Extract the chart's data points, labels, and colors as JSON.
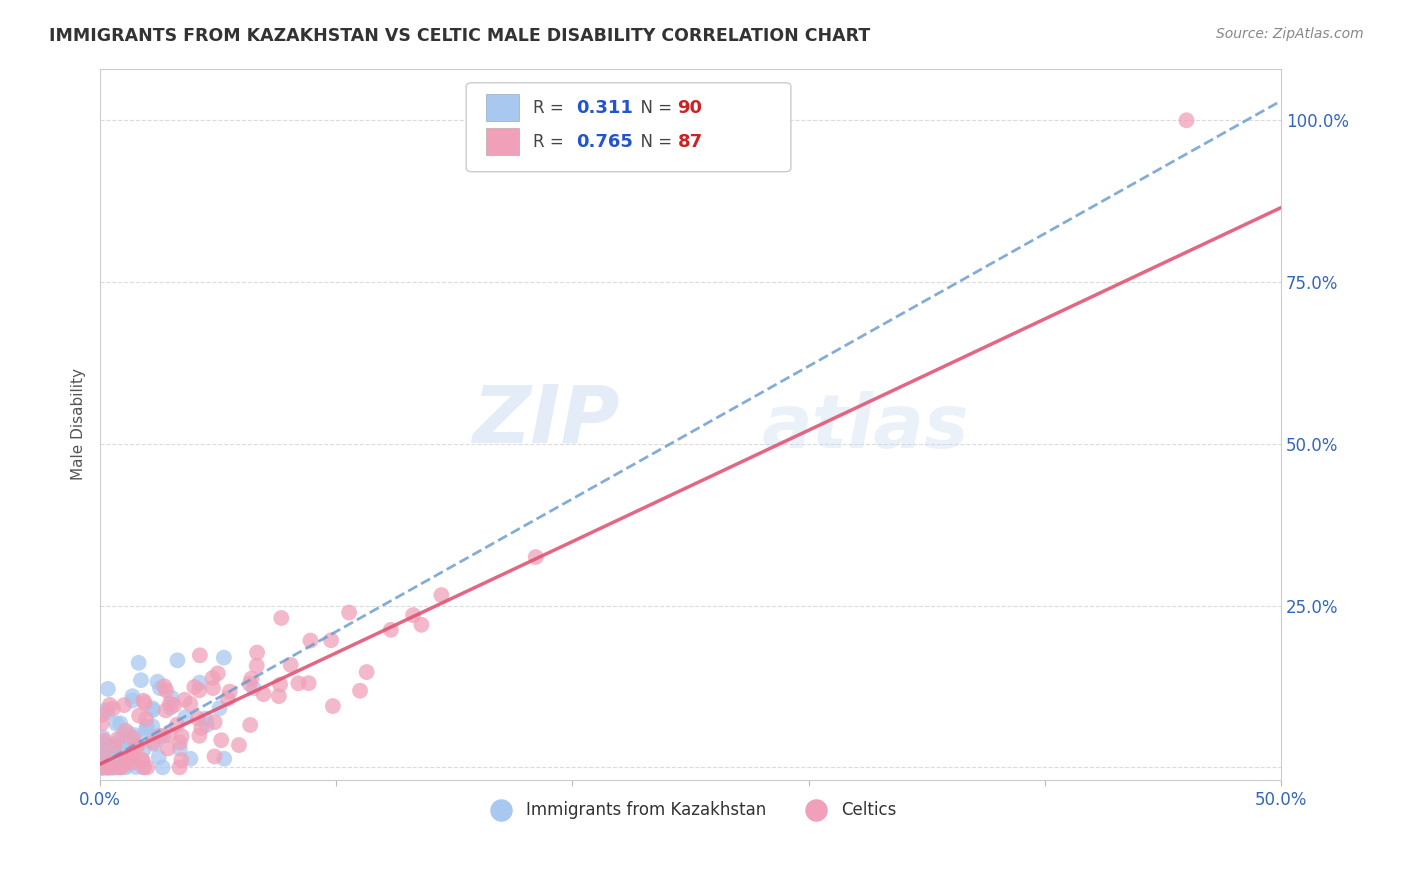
{
  "title": "IMMIGRANTS FROM KAZAKHSTAN VS CELTIC MALE DISABILITY CORRELATION CHART",
  "source": "Source: ZipAtlas.com",
  "ylabel_label": "Male Disability",
  "xlim": [
    0.0,
    0.5
  ],
  "ylim": [
    -0.02,
    1.08
  ],
  "x_ticks": [
    0.0,
    0.1,
    0.2,
    0.3,
    0.4,
    0.5
  ],
  "x_tick_labels": [
    "0.0%",
    "",
    "",
    "",
    "",
    "50.0%"
  ],
  "y_ticks": [
    0.0,
    0.25,
    0.5,
    0.75,
    1.0
  ],
  "y_tick_labels": [
    "",
    "25.0%",
    "50.0%",
    "75.0%",
    "100.0%"
  ],
  "series1_name": "Immigrants from Kazakhstan",
  "series2_name": "Celtics",
  "series1_R": "0.311",
  "series1_N": "90",
  "series2_R": "0.765",
  "series2_N": "87",
  "series1_color": "#a8c8f0",
  "series2_color": "#f0a0b8",
  "series1_line_color": "#6699cc",
  "series2_line_color": "#e05575",
  "watermark_zip": "ZIP",
  "watermark_atlas": "atlas",
  "background_color": "#ffffff",
  "grid_color": "#cccccc",
  "title_color": "#333333",
  "tick_label_color": "#3366bb",
  "ylabel_color": "#555555",
  "source_color": "#888888",
  "seed": 42,
  "n1": 90,
  "n2": 87,
  "line1_slope": 2.05,
  "line1_intercept": 0.005,
  "line2_slope": 1.72,
  "line2_intercept": 0.005
}
